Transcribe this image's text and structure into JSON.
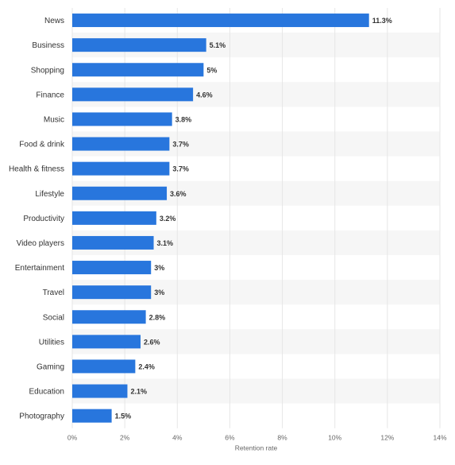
{
  "chart_data": {
    "type": "bar",
    "orientation": "horizontal",
    "categories": [
      "News",
      "Business",
      "Shopping",
      "Finance",
      "Music",
      "Food & drink",
      "Health & fitness",
      "Lifestyle",
      "Productivity",
      "Video players",
      "Entertainment",
      "Travel",
      "Social",
      "Utilities",
      "Gaming",
      "Education",
      "Photography"
    ],
    "values": [
      11.3,
      5.1,
      5,
      4.6,
      3.8,
      3.7,
      3.7,
      3.6,
      3.2,
      3.1,
      3,
      3,
      2.8,
      2.6,
      2.4,
      2.1,
      1.5
    ],
    "value_labels": [
      "11.3%",
      "5.1%",
      "5%",
      "4.6%",
      "3.8%",
      "3.7%",
      "3.7%",
      "3.6%",
      "3.2%",
      "3.1%",
      "3%",
      "3%",
      "2.8%",
      "2.6%",
      "2.4%",
      "2.1%",
      "1.5%"
    ],
    "x_ticks": [
      0,
      2,
      4,
      6,
      8,
      10,
      12,
      14
    ],
    "x_tick_labels": [
      "0%",
      "2%",
      "4%",
      "6%",
      "8%",
      "10%",
      "12%",
      "14%"
    ],
    "xlim": [
      0,
      14
    ],
    "title": "",
    "xlabel": "Retention rate",
    "ylabel": "",
    "grid": true,
    "legend": "none",
    "colors": {
      "bar": "#2876dd",
      "band": "#f6f6f6",
      "grid": "#e6e6e6"
    }
  }
}
